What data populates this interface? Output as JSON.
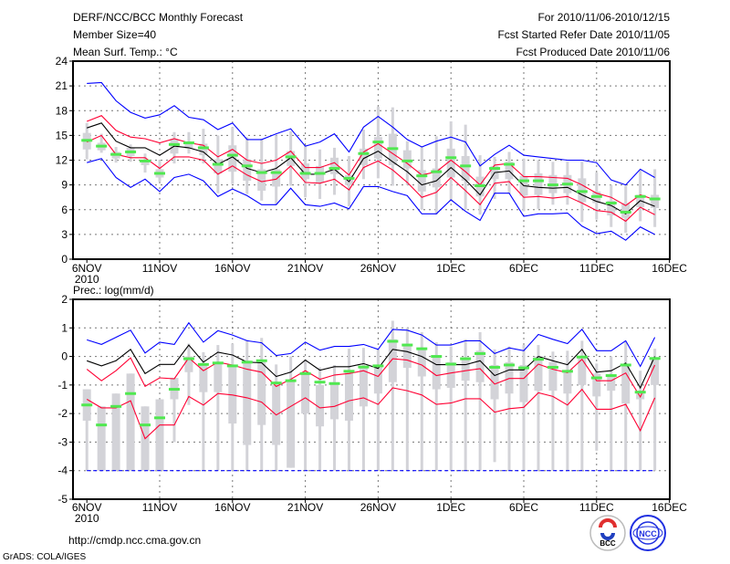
{
  "header": {
    "title": "DERF/NCC/BCC Monthly Forecast",
    "member_size": "Member Size=40",
    "variable": "Mean Surf. Temp.: °C",
    "period": "For 2010/11/06-2010/12/15",
    "started": "Fcst Started Refer Date 2010/11/05",
    "produced": "Fcst Produced Date 2010/11/06"
  },
  "footer": {
    "url": "http://cmdp.ncc.cma.gov.cn",
    "credit": "GrADS: COLA/IGES",
    "logo_bcc": "BCC",
    "logo_ncc": "NCC"
  },
  "colors": {
    "max_min": "#0000ff",
    "spread": "#ff0033",
    "mean": "#000000",
    "ens": "#50e850",
    "box": "#d3d3d8"
  },
  "chart_data": [
    {
      "type": "line",
      "title": "Mean Surf. Temp.: °C",
      "x_tick_labels": [
        "6NOV",
        "11NOV",
        "16NOV",
        "21NOV",
        "26NOV",
        "1DEC",
        "6DEC",
        "11DEC",
        "16DEC"
      ],
      "x_year_label": "2010",
      "x_start": "2010-11-06",
      "n_days": 40,
      "ylim": [
        0,
        24
      ],
      "y_ticks": [
        "0",
        "3",
        "6",
        "9",
        "12",
        "15",
        "18",
        "21",
        "24"
      ],
      "grid": true,
      "series": [
        {
          "name": "max",
          "color": "#0000ff",
          "values": [
            21.3,
            21.4,
            19.2,
            17.8,
            17.1,
            17.5,
            18.6,
            17.2,
            16.9,
            15.7,
            16.5,
            14.5,
            14.5,
            15.2,
            15.8,
            13.7,
            14.2,
            15.2,
            13.0,
            16.0,
            17.3,
            16.0,
            14.5,
            13.6,
            14.3,
            14.8,
            14.2,
            11.3,
            12.7,
            13.8,
            12.6,
            12.4,
            12.2,
            12.0,
            12.0,
            11.7,
            9.6,
            9.0,
            10.9,
            9.9
          ]
        },
        {
          "name": "upper",
          "color": "#ff0033",
          "values": [
            16.7,
            17.4,
            15.6,
            14.8,
            14.6,
            14.1,
            14.6,
            14.1,
            13.8,
            12.4,
            13.3,
            12.0,
            11.6,
            12.0,
            13.1,
            11.1,
            11.1,
            11.7,
            10.2,
            13.0,
            14.0,
            12.8,
            11.6,
            10.2,
            10.6,
            12.0,
            10.6,
            9.0,
            11.4,
            11.6,
            10.0,
            10.0,
            9.9,
            9.8,
            9.0,
            8.0,
            7.5,
            6.5,
            7.8,
            7.2
          ]
        },
        {
          "name": "mean",
          "color": "#000000",
          "values": [
            15.9,
            16.5,
            14.3,
            13.5,
            13.5,
            12.6,
            13.7,
            13.5,
            13.0,
            11.5,
            12.4,
            11.0,
            10.5,
            11.0,
            12.3,
            10.3,
            10.3,
            10.9,
            9.4,
            12.2,
            13.1,
            11.8,
            10.6,
            9.0,
            9.5,
            11.1,
            9.6,
            7.8,
            10.5,
            10.7,
            8.9,
            8.7,
            8.6,
            8.7,
            7.8,
            7.0,
            6.5,
            5.5,
            7.1,
            6.4
          ]
        },
        {
          "name": "lower",
          "color": "#ff0033",
          "values": [
            14.2,
            15.0,
            12.7,
            12.3,
            12.3,
            11.0,
            12.4,
            12.4,
            12.0,
            10.3,
            11.3,
            10.2,
            9.4,
            9.7,
            11.3,
            9.3,
            9.2,
            9.7,
            8.4,
            11.1,
            11.9,
            10.8,
            9.3,
            7.5,
            8.1,
            9.9,
            8.3,
            6.6,
            9.2,
            9.4,
            7.5,
            7.6,
            7.4,
            7.6,
            6.8,
            5.9,
            5.7,
            4.6,
            6.3,
            5.4
          ]
        },
        {
          "name": "min",
          "color": "#0000ff",
          "values": [
            11.7,
            12.2,
            9.9,
            8.7,
            9.7,
            8.2,
            9.9,
            10.3,
            9.5,
            7.6,
            8.5,
            7.7,
            6.6,
            6.6,
            8.6,
            6.6,
            6.4,
            6.8,
            6.1,
            8.8,
            8.8,
            8.2,
            7.7,
            5.5,
            5.5,
            7.2,
            5.8,
            4.7,
            8.0,
            8.0,
            5.2,
            5.5,
            5.5,
            5.6,
            4.0,
            3.1,
            3.4,
            2.3,
            3.9,
            3.0
          ]
        }
      ],
      "ens_marks": [
        14.4,
        13.7,
        12.7,
        13.0,
        11.9,
        10.4,
        13.9,
        14.1,
        13.5,
        11.5,
        12.6,
        11.3,
        10.5,
        10.5,
        12.4,
        10.4,
        10.4,
        11.0,
        9.8,
        12.8,
        14.2,
        13.4,
        11.9,
        10.1,
        10.6,
        12.3,
        11.3,
        8.9,
        11.0,
        11.5,
        9.5,
        9.5,
        9.0,
        9.1,
        8.2,
        7.6,
        6.8,
        5.7,
        7.6,
        7.3
      ],
      "boxes": [
        [
          12.1,
          13.3,
          15.3,
          16.5
        ],
        [
          12.9,
          13.2,
          14.1,
          15.2
        ],
        [
          11.7,
          12.2,
          13.0,
          13.6
        ],
        [
          11.8,
          12.5,
          13.5,
          13.9
        ],
        [
          10.5,
          11.4,
          12.0,
          12.8
        ],
        [
          9.4,
          9.9,
          10.9,
          12.0
        ],
        [
          11.6,
          12.8,
          14.6,
          15.4
        ],
        [
          12.8,
          13.4,
          14.2,
          15.4
        ],
        [
          11.6,
          12.6,
          14.0,
          15.8
        ],
        [
          8.0,
          10.4,
          12.1,
          15.0
        ],
        [
          9.1,
          10.6,
          13.8,
          16.0
        ],
        [
          7.9,
          9.5,
          12.1,
          14.8
        ],
        [
          7.1,
          8.3,
          10.9,
          14.6
        ],
        [
          6.6,
          8.8,
          10.9,
          15.0
        ],
        [
          8.9,
          11.3,
          13.1,
          15.5
        ],
        [
          7.5,
          9.7,
          11.6,
          13.8
        ],
        [
          7.3,
          9.3,
          11.3,
          13.3
        ],
        [
          7.8,
          10.3,
          12.3,
          13.5
        ],
        [
          6.4,
          9.0,
          10.2,
          12.5
        ],
        [
          9.7,
          11.4,
          13.4,
          15.7
        ],
        [
          9.8,
          12.2,
          14.8,
          18.5
        ],
        [
          8.9,
          11.4,
          15.2,
          18.4
        ],
        [
          9.0,
          11.0,
          13.2,
          14.3
        ],
        [
          6.0,
          8.2,
          10.8,
          13.6
        ],
        [
          5.4,
          8.7,
          11.0,
          14.9
        ],
        [
          7.0,
          9.9,
          13.4,
          16.7
        ],
        [
          6.0,
          9.5,
          12.5,
          16.3
        ],
        [
          5.4,
          7.6,
          10.0,
          12.6
        ],
        [
          7.3,
          9.7,
          11.3,
          12.4
        ],
        [
          7.9,
          9.7,
          11.8,
          13.0
        ],
        [
          5.8,
          7.7,
          10.1,
          12.2
        ],
        [
          6.1,
          7.8,
          10.4,
          12.0
        ],
        [
          6.6,
          8.0,
          10.2,
          11.8
        ],
        [
          6.6,
          8.0,
          10.2,
          11.8
        ],
        [
          4.5,
          6.9,
          9.8,
          11.8
        ],
        [
          4.8,
          6.8,
          8.2,
          10.5
        ],
        [
          3.9,
          5.3,
          7.1,
          9.0
        ],
        [
          3.2,
          5.0,
          6.8,
          8.9
        ],
        [
          4.6,
          6.3,
          7.8,
          10.8
        ],
        [
          3.9,
          6.2,
          7.8,
          10.9
        ]
      ]
    },
    {
      "type": "line",
      "title": "Prec.: log(mm/d)",
      "x_tick_labels": [
        "6NOV",
        "11NOV",
        "16NOV",
        "21NOV",
        "26NOV",
        "1DEC",
        "6DEC",
        "11DEC",
        "16DEC"
      ],
      "x_year_label": "2010",
      "x_start": "2010-11-06",
      "n_days": 40,
      "ylim": [
        -5,
        2
      ],
      "y_ticks": [
        "-5",
        "-4",
        "-3",
        "-2",
        "-1",
        "0",
        "1",
        "2"
      ],
      "grid": true,
      "series": [
        {
          "name": "max",
          "color": "#0000ff",
          "values": [
            0.58,
            0.42,
            0.67,
            0.92,
            0.12,
            0.5,
            0.42,
            1.18,
            0.5,
            0.9,
            0.75,
            0.55,
            0.48,
            0.03,
            0.1,
            0.5,
            0.22,
            0.35,
            0.35,
            0.42,
            0.25,
            0.95,
            0.92,
            0.75,
            0.4,
            0.4,
            0.55,
            0.55,
            0.1,
            0.3,
            0.2,
            0.77,
            0.6,
            0.45,
            0.95,
            0.2,
            0.2,
            0.55,
            -0.35,
            0.67
          ]
        },
        {
          "name": "upper",
          "color": "#ff0033",
          "values": [
            -0.45,
            -0.85,
            -0.5,
            -0.05,
            -1.05,
            -0.75,
            -0.78,
            -0.05,
            -0.5,
            -0.2,
            -0.3,
            -0.45,
            -0.55,
            -1.05,
            -0.8,
            -0.5,
            -0.8,
            -0.65,
            -0.6,
            -0.5,
            -0.7,
            -0.08,
            -0.13,
            -0.3,
            -0.67,
            -0.58,
            -0.5,
            -0.43,
            -0.97,
            -0.77,
            -0.77,
            -0.27,
            -0.45,
            -0.57,
            -0.1,
            -0.85,
            -0.85,
            -0.58,
            -1.42,
            -0.3
          ]
        },
        {
          "name": "mean",
          "color": "#000000",
          "values": [
            -0.15,
            -0.33,
            -0.15,
            0.25,
            -0.6,
            -0.28,
            -0.28,
            0.4,
            -0.2,
            0.15,
            0.05,
            -0.2,
            -0.22,
            -0.7,
            -0.55,
            -0.13,
            -0.48,
            -0.36,
            -0.36,
            -0.25,
            -0.42,
            0.25,
            0.17,
            0.0,
            -0.29,
            -0.29,
            -0.29,
            -0.15,
            -0.67,
            -0.47,
            -0.47,
            0.0,
            -0.15,
            -0.29,
            0.25,
            -0.55,
            -0.5,
            -0.23,
            -1.1,
            0.0
          ]
        },
        {
          "name": "lower",
          "color": "#ff0033",
          "values": [
            -1.5,
            -1.8,
            -1.8,
            -1.55,
            -2.88,
            -2.4,
            -2.4,
            -1.4,
            -1.7,
            -1.3,
            -1.35,
            -1.45,
            -1.6,
            -2.05,
            -1.75,
            -1.45,
            -1.8,
            -1.75,
            -1.55,
            -1.45,
            -1.68,
            -1.1,
            -1.2,
            -1.35,
            -1.68,
            -1.63,
            -1.48,
            -1.48,
            -1.95,
            -1.83,
            -1.78,
            -1.27,
            -1.4,
            -1.7,
            -1.15,
            -1.85,
            -1.85,
            -1.68,
            -2.6,
            -1.45
          ]
        },
        {
          "name": "min",
          "color": "#0000ff",
          "values": [
            -4,
            -4,
            -4,
            -4,
            -4,
            -4,
            -4,
            -4,
            -4,
            -4,
            -4,
            -4,
            -4,
            -4,
            -4,
            -4,
            -4,
            -4,
            -4,
            -4,
            -4,
            -4,
            -4,
            -4,
            -4,
            -4,
            -4,
            -4,
            -4,
            -4,
            -4,
            -4,
            -4,
            -4,
            -4,
            -4,
            -4,
            -4,
            -4,
            -4
          ]
        }
      ],
      "ens_marks": [
        -1.7,
        -2.4,
        -1.75,
        -1.3,
        -2.4,
        -2.15,
        -1.15,
        -0.08,
        -0.28,
        -0.23,
        -0.33,
        -0.2,
        -0.15,
        -0.93,
        -0.85,
        -0.6,
        -0.9,
        -0.95,
        -0.52,
        -0.37,
        -0.33,
        0.53,
        0.4,
        0.27,
        0.0,
        -0.27,
        -0.08,
        0.1,
        -0.38,
        -0.3,
        -0.4,
        -0.1,
        -0.38,
        -0.52,
        -0.02,
        -0.75,
        -0.67,
        -0.3,
        -1.25,
        -0.07
      ],
      "boxes": [
        [
          -4,
          -2.25,
          -1.15,
          -1.15
        ],
        [
          -4,
          -4,
          -1.75,
          -1.75
        ],
        [
          -4,
          -4,
          -1.3,
          -1.3
        ],
        [
          -4,
          -4,
          -0.6,
          -0.6
        ],
        [
          -4,
          -4,
          -1.75,
          -1.75
        ],
        [
          -4,
          -4,
          -1.5,
          -1.5
        ],
        [
          -3,
          -1.5,
          -0.75,
          -0.75
        ],
        [
          -1.7,
          -0.55,
          0.0,
          0.45
        ],
        [
          -4,
          -1.25,
          -0.25,
          0.15
        ],
        [
          -4,
          -1.25,
          -0.2,
          0.4
        ],
        [
          -4,
          -2.35,
          -0.3,
          0.45
        ],
        [
          -4,
          -3.1,
          -0.15,
          0.58
        ],
        [
          -4,
          -2.4,
          -0.2,
          0.65
        ],
        [
          -4,
          -3.1,
          -1.0,
          -0.28
        ],
        [
          -3.9,
          -3.9,
          -0.8,
          0.0
        ],
        [
          -4,
          -2.0,
          -0.6,
          -0.1
        ],
        [
          -4,
          -2.45,
          -1.0,
          -0.38
        ],
        [
          -4,
          -2.2,
          -0.9,
          -0.3
        ],
        [
          -4,
          -2.25,
          -0.5,
          0.27
        ],
        [
          -4,
          -1.75,
          -0.4,
          0.3
        ],
        [
          -4,
          -1.3,
          -0.3,
          0.25
        ],
        [
          -4,
          -0.9,
          0.6,
          1.25
        ],
        [
          -4,
          -0.4,
          0.45,
          1.0
        ],
        [
          -4,
          -0.7,
          0.3,
          0.85
        ],
        [
          -4,
          -1.15,
          0.05,
          0.5
        ],
        [
          -4,
          -1.1,
          -0.2,
          0.35
        ],
        [
          -4,
          -0.85,
          -0.05,
          0.6
        ],
        [
          -4,
          -0.9,
          0.2,
          0.85
        ],
        [
          -3.7,
          -1.5,
          -0.3,
          0.25
        ],
        [
          -4,
          -1.3,
          -0.2,
          0.35
        ],
        [
          -4,
          -1.6,
          -0.3,
          0.4
        ],
        [
          -4,
          -1.2,
          0.0,
          0.4
        ],
        [
          -4,
          -1.2,
          -0.2,
          0.17
        ],
        [
          -4,
          -1.3,
          -0.5,
          0.2
        ],
        [
          -4,
          -1.0,
          0.0,
          0.55
        ],
        [
          -3.3,
          -1.4,
          -0.6,
          -0.25
        ],
        [
          -4,
          -1.2,
          -0.7,
          0.0
        ],
        [
          -4,
          -1.65,
          -0.35,
          0.5
        ],
        [
          -4,
          -1.5,
          -1.2,
          -0.5
        ],
        [
          -4,
          -1.0,
          -0.1,
          0.27
        ]
      ]
    }
  ]
}
